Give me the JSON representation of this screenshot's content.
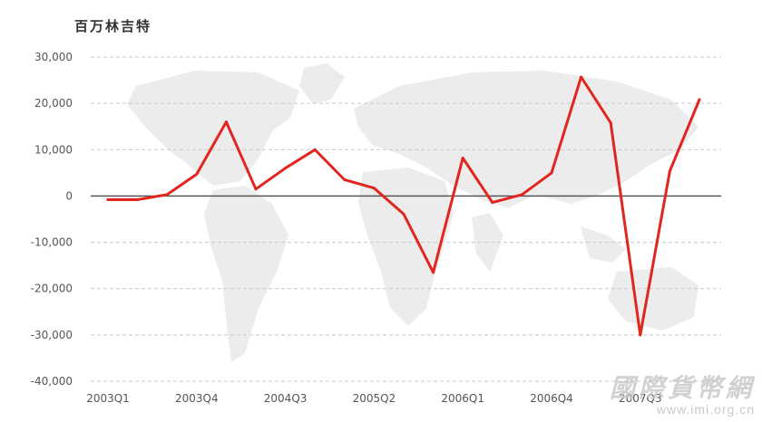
{
  "chart_data": {
    "type": "line",
    "unit_label": "百万林吉特",
    "x": [
      "2003Q1",
      "2003Q2",
      "2003Q3",
      "2003Q4",
      "2004Q1",
      "2004Q2",
      "2004Q3",
      "2004Q4",
      "2005Q1",
      "2005Q2",
      "2005Q3",
      "2005Q4",
      "2006Q1",
      "2006Q2",
      "2006Q3",
      "2006Q4",
      "2007Q1",
      "2007Q2",
      "2007Q3",
      "2007Q4",
      "2008Q1"
    ],
    "tick_labels": [
      "2003Q1",
      "2003Q4",
      "2004Q3",
      "2005Q2",
      "2006Q1",
      "2006Q4",
      "2007Q3"
    ],
    "series": [
      {
        "values": [
          -800,
          -800,
          300,
          4700,
          16000,
          1500,
          6000,
          10000,
          3500,
          1700,
          -3900,
          -16500,
          8200,
          -1400,
          300,
          5000,
          25700,
          15800,
          -30000,
          5400,
          20800
        ],
        "color": "#e0261f"
      }
    ],
    "yticks": [
      30000,
      20000,
      10000,
      0,
      -10000,
      -20000,
      -30000,
      -40000
    ],
    "ytick_labels": [
      "30,000",
      "20,000",
      "10,000",
      "0",
      "-10,000",
      "-20,000",
      "-30,000",
      "-40,000"
    ],
    "ylim": [
      -40000,
      30000
    ],
    "grid": true,
    "legend": "none"
  },
  "watermark": {
    "chinese": "國際貨幣網",
    "url": "www.imi.org.cn"
  }
}
